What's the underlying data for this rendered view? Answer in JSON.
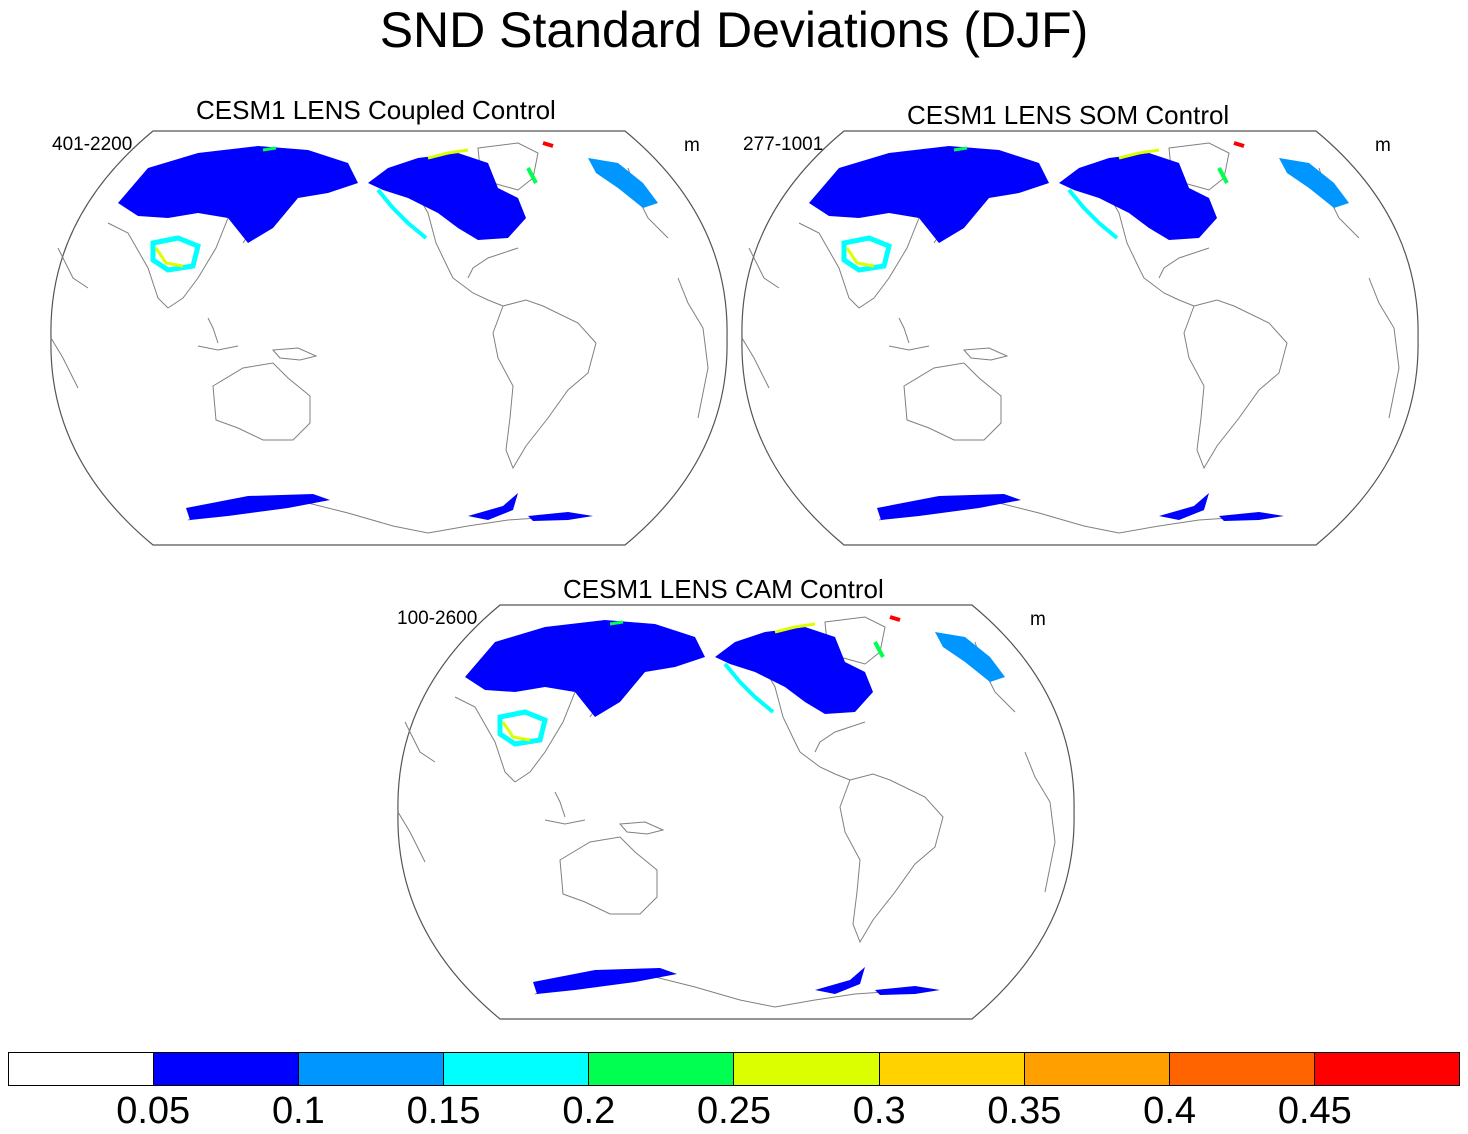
{
  "title": "SND Standard Deviations (DJF)",
  "panels": [
    {
      "title": "CESM1 LENS Coupled Control",
      "years": "401-2200",
      "units": "m"
    },
    {
      "title": "CESM1 LENS SOM Control",
      "years": "277-1001",
      "units": "m"
    },
    {
      "title": "CESM1 LENS CAM Control",
      "years": "100-2600",
      "units": "m"
    }
  ],
  "colorbar": {
    "colors": [
      "#ffffff",
      "#0000ff",
      "#0096ff",
      "#00ffff",
      "#00ff50",
      "#dcff00",
      "#ffd200",
      "#ffa000",
      "#ff6400",
      "#ff0000"
    ],
    "labels": [
      "0.05",
      "0.1",
      "0.15",
      "0.2",
      "0.25",
      "0.3",
      "0.35",
      "0.4",
      "0.45"
    ]
  },
  "colors": {
    "snow_main": "#0000ff",
    "snow_light": "#0096ff",
    "snow_cyan": "#00ffff",
    "snow_green": "#00ff50",
    "snow_yellow": "#dcff00",
    "snow_red": "#ff0000",
    "coastline": "#808080",
    "border": "#555555"
  }
}
